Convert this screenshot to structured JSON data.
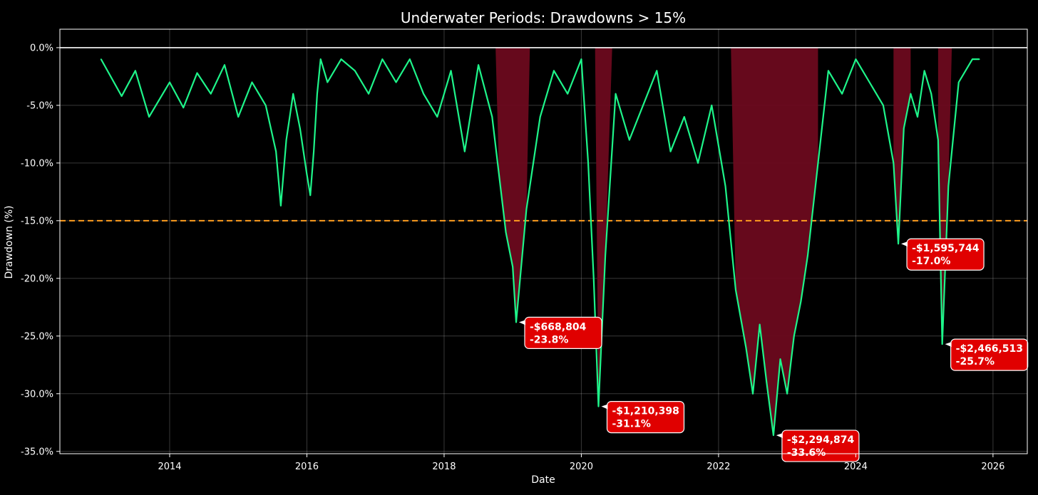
{
  "chart_data": {
    "type": "area",
    "title": "Underwater Periods: Drawdowns > 15%",
    "xlabel": "Date",
    "ylabel": "Drawdown (%)",
    "xlim": [
      2012.4,
      2026.5
    ],
    "ylim": [
      -35.2,
      1.6
    ],
    "x_ticks": [
      2014,
      2016,
      2018,
      2020,
      2022,
      2024,
      2026
    ],
    "x_tick_labels": [
      "2014",
      "2016",
      "2018",
      "2020",
      "2022",
      "2024",
      "2026"
    ],
    "y_ticks": [
      0,
      -5,
      -10,
      -15,
      -20,
      -25,
      -30,
      -35
    ],
    "y_tick_labels": [
      "0.0%",
      "-5.0%",
      "-10.0%",
      "-15.0%",
      "-20.0%",
      "-25.0%",
      "-30.0%",
      "-35.0%"
    ],
    "grid": true,
    "threshold": -15,
    "colors": {
      "line": "#1ef58a",
      "shade": "#6b0a1d",
      "threshold": "#ff9d1f",
      "zero_line": "#ffffff",
      "annotation_bg": "#e00000"
    },
    "series": [
      {
        "x": [
          2013.0,
          2013.3,
          2013.5,
          2013.7,
          2014.0,
          2014.2,
          2014.4,
          2014.6,
          2014.8,
          2015.0,
          2015.2,
          2015.4,
          2015.55,
          2015.62,
          2015.7,
          2015.8,
          2015.9,
          2016.0,
          2016.05,
          2016.1,
          2016.15,
          2016.2,
          2016.3,
          2016.5,
          2016.7,
          2016.9,
          2017.1,
          2017.3,
          2017.5,
          2017.7,
          2017.9,
          2018.1,
          2018.3,
          2018.5,
          2018.7,
          2018.8,
          2018.9,
          2019.0,
          2019.05,
          2019.2,
          2019.4,
          2019.6,
          2019.8,
          2020.0,
          2020.1,
          2020.18,
          2020.25,
          2020.35,
          2020.5,
          2020.7,
          2020.9,
          2021.1,
          2021.3,
          2021.5,
          2021.7,
          2021.9,
          2022.1,
          2022.25,
          2022.4,
          2022.5,
          2022.6,
          2022.7,
          2022.8,
          2022.9,
          2023.0,
          2023.1,
          2023.2,
          2023.3,
          2023.45,
          2023.6,
          2023.8,
          2024.0,
          2024.2,
          2024.4,
          2024.55,
          2024.62,
          2024.7,
          2024.8,
          2024.9,
          2025.0,
          2025.1,
          2025.2,
          2025.26,
          2025.35,
          2025.5,
          2025.7,
          2025.8
        ],
        "y": [
          -1.0,
          -4.2,
          -2.0,
          -6.0,
          -3.0,
          -5.2,
          -2.2,
          -4.0,
          -1.5,
          -6.0,
          -3.0,
          -5.0,
          -9.0,
          -13.7,
          -8.0,
          -4.0,
          -7.0,
          -11.0,
          -12.8,
          -9.0,
          -4.0,
          -1.0,
          -3.0,
          -1.0,
          -2.0,
          -4.0,
          -1.0,
          -3.0,
          -1.0,
          -4.0,
          -6.0,
          -2.0,
          -9.0,
          -1.5,
          -6.0,
          -11.0,
          -16.0,
          -19.0,
          -23.8,
          -14.0,
          -6.0,
          -2.0,
          -4.0,
          -1.0,
          -10.0,
          -20.0,
          -31.1,
          -18.0,
          -4.0,
          -8.0,
          -5.0,
          -2.0,
          -9.0,
          -6.0,
          -10.0,
          -5.0,
          -12.0,
          -21.0,
          -26.0,
          -30.0,
          -24.0,
          -29.0,
          -33.6,
          -27.0,
          -30.0,
          -25.0,
          -22.0,
          -18.0,
          -10.0,
          -2.0,
          -4.0,
          -1.0,
          -3.0,
          -5.0,
          -10.0,
          -17.0,
          -7.0,
          -4.0,
          -6.0,
          -2.0,
          -4.0,
          -8.0,
          -25.7,
          -12.0,
          -3.0,
          -1.0,
          -1.0
        ]
      }
    ],
    "shaded_periods": [
      {
        "start": 2018.75,
        "end": 2019.25
      },
      {
        "start": 2020.2,
        "end": 2020.45
      },
      {
        "start": 2022.18,
        "end": 2023.45
      },
      {
        "start": 2024.55,
        "end": 2024.8
      },
      {
        "start": 2025.2,
        "end": 2025.4
      }
    ],
    "annotations": [
      {
        "x": 2019.05,
        "y": -23.8,
        "amount": "-$668,804",
        "percent": "-23.8%"
      },
      {
        "x": 2020.25,
        "y": -31.1,
        "amount": "-$1,210,398",
        "percent": "-31.1%"
      },
      {
        "x": 2022.8,
        "y": -33.6,
        "amount": "-$2,294,874",
        "percent": "-33.6%"
      },
      {
        "x": 2024.62,
        "y": -17.0,
        "amount": "-$1,595,744",
        "percent": "-17.0%"
      },
      {
        "x": 2025.26,
        "y": -25.7,
        "amount": "-$2,466,513",
        "percent": "-25.7%"
      }
    ]
  }
}
